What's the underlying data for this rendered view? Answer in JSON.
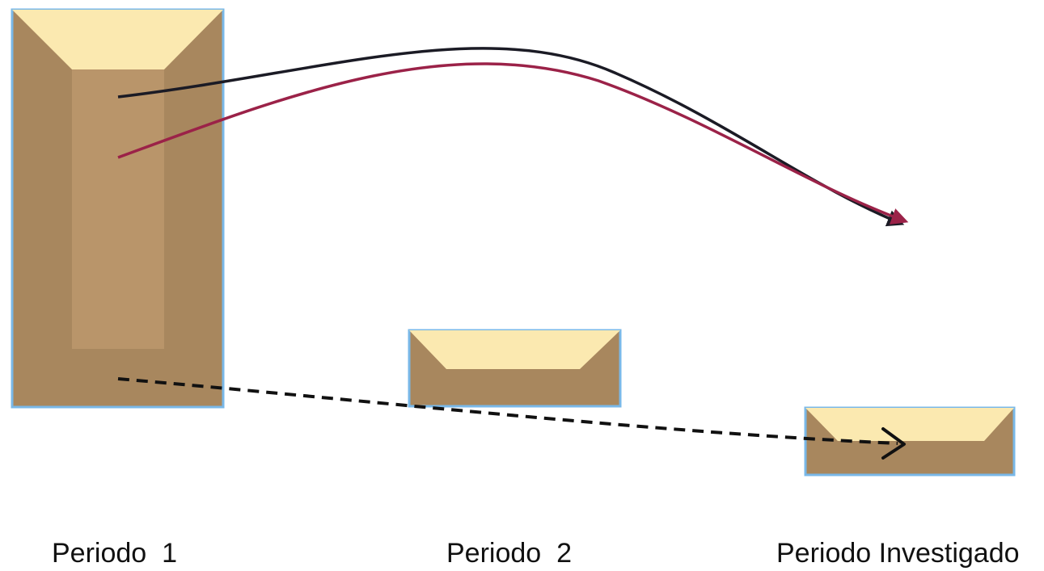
{
  "labels": {
    "period_1": "Periodo  1",
    "period_2": "Periodo  2",
    "period_investigated": "Periodo Investigado"
  },
  "colors": {
    "box_dark": "#a8875e",
    "box_mid": "#b9956a",
    "box_light": "#fbe9b0",
    "box_border": "#79b8e8",
    "arrow_black": "#1b1b25",
    "arrow_red": "#9b2248",
    "arrow_dashed": "#111111"
  },
  "icons": {
    "box": "beveled-container",
    "arrow": "arrowhead"
  }
}
